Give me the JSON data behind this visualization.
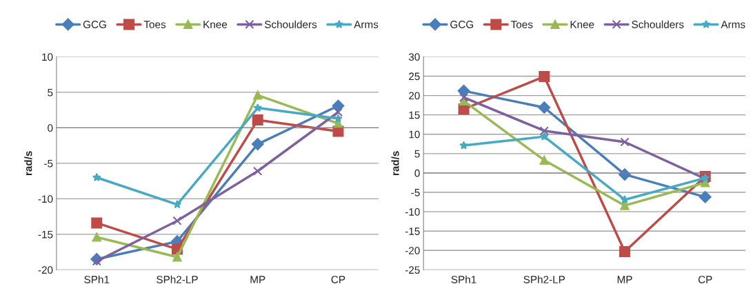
{
  "chart_data": [
    {
      "type": "line",
      "ylabel": "rad/s",
      "categories": [
        "SPh1",
        "SPh2-LP",
        "MP",
        "CP"
      ],
      "ylim": [
        -20,
        10
      ],
      "yticks": [
        -20,
        -15,
        -10,
        -5,
        0,
        5,
        10
      ],
      "grid": "y",
      "legend": "top",
      "series": [
        {
          "name": "GCG",
          "color": "#4a7ebb",
          "marker": "diamond",
          "values": [
            -18.5,
            -16,
            -2.3,
            3.1
          ]
        },
        {
          "name": "Toes",
          "color": "#be4b48",
          "marker": "square",
          "values": [
            -13.4,
            -17.1,
            1.1,
            -0.5
          ]
        },
        {
          "name": "Knee",
          "color": "#98b954",
          "marker": "triangle",
          "values": [
            -15.4,
            -18.2,
            4.6,
            0.6
          ]
        },
        {
          "name": "Schoulders",
          "color": "#7d60a0",
          "marker": "cross",
          "values": [
            -18.8,
            -13.1,
            -6.1,
            2.2
          ]
        },
        {
          "name": "Arms",
          "color": "#46aac5",
          "marker": "star",
          "values": [
            -7,
            -10.8,
            2.8,
            1.3
          ]
        }
      ]
    },
    {
      "type": "line",
      "ylabel": "rad/s",
      "categories": [
        "SPh1",
        "SPh2-LP",
        "MP",
        "CP"
      ],
      "ylim": [
        -25,
        30
      ],
      "yticks": [
        -25,
        -20,
        -15,
        -10,
        -5,
        0,
        5,
        10,
        15,
        20,
        25,
        30
      ],
      "grid": "y",
      "legend": "top",
      "series": [
        {
          "name": "GCG",
          "color": "#4a7ebb",
          "marker": "diamond",
          "values": [
            21.2,
            16.9,
            -0.4,
            -6.2
          ]
        },
        {
          "name": "Toes",
          "color": "#be4b48",
          "marker": "square",
          "values": [
            16.5,
            24.9,
            -20.3,
            -0.9
          ]
        },
        {
          "name": "Knee",
          "color": "#98b954",
          "marker": "triangle",
          "values": [
            18.6,
            3.3,
            -8.4,
            -2.5
          ]
        },
        {
          "name": "Schoulders",
          "color": "#7d60a0",
          "marker": "cross",
          "values": [
            19.5,
            10.9,
            8,
            -1.5
          ]
        },
        {
          "name": "Arms",
          "color": "#46aac5",
          "marker": "star",
          "values": [
            7.1,
            9.4,
            -6.9,
            -1.3
          ]
        }
      ]
    }
  ]
}
